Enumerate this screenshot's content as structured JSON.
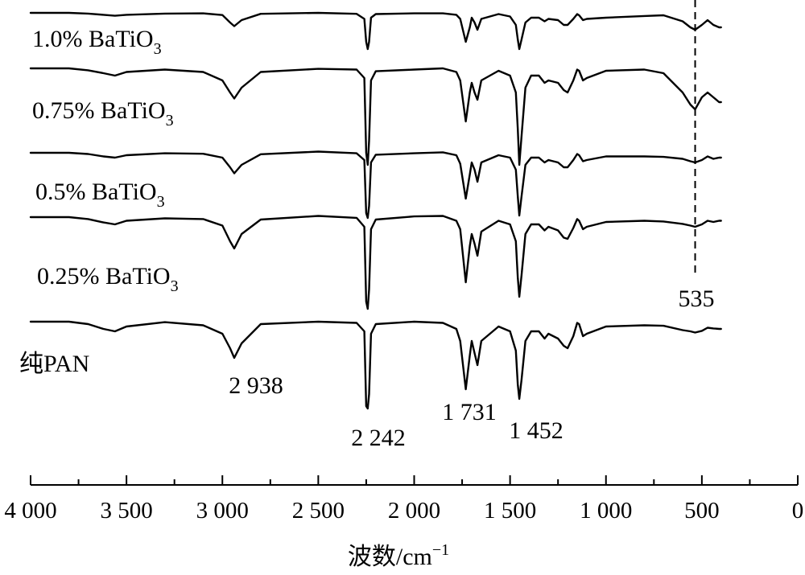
{
  "chart_data": {
    "type": "line",
    "title": "",
    "xlabel": "波数/cm",
    "xlabel_sup": "−1",
    "ylabel": "",
    "xlim": [
      4000,
      0
    ],
    "x_ticks": [
      4000,
      3500,
      3000,
      2500,
      2000,
      1500,
      1000,
      500,
      0
    ],
    "x_tick_labels": [
      "4 000",
      "3 500",
      "3 000",
      "2 500",
      "2 000",
      "1 500",
      "1 000",
      "500",
      "0"
    ],
    "grid": false,
    "legend": "none",
    "series": [
      {
        "name": "1.0% BaTiO₃",
        "label": {
          "base": "1.0% BaTiO",
          "sub": "3"
        },
        "x": [
          4000,
          3800,
          3700,
          3620,
          3560,
          3500,
          3300,
          3100,
          3000,
          2960,
          2938,
          2900,
          2800,
          2500,
          2300,
          2260,
          2250,
          2242,
          2235,
          2225,
          2200,
          2000,
          1850,
          1780,
          1760,
          1731,
          1710,
          1700,
          1685,
          1670,
          1650,
          1560,
          1500,
          1470,
          1460,
          1452,
          1440,
          1420,
          1390,
          1350,
          1320,
          1300,
          1250,
          1220,
          1200,
          1170,
          1150,
          1140,
          1120,
          1100,
          1000,
          800,
          700,
          600,
          560,
          535,
          500,
          470,
          440,
          410,
          400
        ],
        "y": [
          0.0,
          0.0,
          -0.3,
          -0.8,
          -1.2,
          -0.8,
          -0.3,
          -0.2,
          -0.9,
          -4.0,
          -5.5,
          -3.0,
          -0.4,
          0.0,
          -0.4,
          -2.5,
          -12.0,
          -15.0,
          -12.0,
          -2.0,
          -0.5,
          -0.2,
          -0.2,
          -0.8,
          -2.5,
          -12.0,
          -6.0,
          -2.0,
          -4.0,
          -7.0,
          -2.5,
          -0.5,
          -1.5,
          -5.0,
          -11.0,
          -15.0,
          -11.0,
          -4.0,
          -2.0,
          -2.0,
          -3.5,
          -2.5,
          -3.0,
          -5.0,
          -5.0,
          -2.5,
          -0.5,
          -1.0,
          -3.0,
          -2.5,
          -2.0,
          -1.3,
          -1.0,
          -3.5,
          -6.0,
          -7.0,
          -5.0,
          -3.0,
          -5.0,
          -6.0,
          -6.0
        ]
      },
      {
        "name": "0.75% BaTiO₃",
        "label": {
          "base": "0.75% BaTiO",
          "sub": "3"
        },
        "x": [
          4000,
          3800,
          3700,
          3620,
          3560,
          3500,
          3300,
          3100,
          3000,
          2960,
          2938,
          2900,
          2800,
          2500,
          2300,
          2260,
          2250,
          2242,
          2235,
          2225,
          2200,
          2000,
          1850,
          1780,
          1760,
          1731,
          1710,
          1700,
          1685,
          1670,
          1650,
          1560,
          1500,
          1470,
          1460,
          1452,
          1440,
          1420,
          1390,
          1350,
          1320,
          1300,
          1250,
          1220,
          1200,
          1170,
          1150,
          1140,
          1120,
          1100,
          1000,
          800,
          700,
          600,
          560,
          535,
          500,
          470,
          440,
          410,
          400
        ],
        "y": [
          0.0,
          0.0,
          -0.8,
          -2.0,
          -3.0,
          -1.5,
          -0.5,
          -1.5,
          -5.0,
          -10.0,
          -12.5,
          -8.0,
          -1.5,
          -0.2,
          -0.5,
          -4.0,
          -35.0,
          -40.0,
          -30.0,
          -5.0,
          -1.2,
          -0.5,
          0.0,
          -1.5,
          -5.0,
          -22.0,
          -10.0,
          -6.0,
          -10.0,
          -13.0,
          -5.0,
          -1.0,
          -3.0,
          -10.0,
          -25.0,
          -40.0,
          -28.0,
          -8.0,
          -3.0,
          -3.0,
          -6.0,
          -5.0,
          -6.0,
          -9.0,
          -10.0,
          -5.0,
          -0.5,
          -1.0,
          -5.0,
          -4.0,
          -1.0,
          -0.5,
          -2.0,
          -10.0,
          -15.0,
          -17.0,
          -12.0,
          -10.0,
          -12.0,
          -14.0,
          -14.0
        ]
      },
      {
        "name": "0.5% BaTiO₃",
        "label": {
          "base": "0.5% BaTiO",
          "sub": "3"
        },
        "x": [
          4000,
          3800,
          3700,
          3620,
          3560,
          3500,
          3300,
          3100,
          3000,
          2960,
          2938,
          2900,
          2800,
          2500,
          2300,
          2260,
          2250,
          2242,
          2235,
          2225,
          2200,
          2000,
          1850,
          1780,
          1760,
          1731,
          1710,
          1700,
          1685,
          1670,
          1650,
          1560,
          1500,
          1470,
          1460,
          1452,
          1440,
          1420,
          1390,
          1350,
          1320,
          1300,
          1250,
          1220,
          1200,
          1170,
          1150,
          1140,
          1120,
          1100,
          1000,
          800,
          700,
          600,
          560,
          535,
          500,
          470,
          440,
          410,
          400
        ],
        "y": [
          0.0,
          0.0,
          -0.5,
          -1.5,
          -2.0,
          -1.0,
          -0.2,
          -0.4,
          -2.0,
          -6.0,
          -8.5,
          -5.0,
          -0.6,
          0.5,
          -0.2,
          -3.0,
          -25.0,
          -27.0,
          -22.0,
          -4.0,
          -0.8,
          -0.2,
          0.2,
          -1.0,
          -4.5,
          -19.0,
          -9.0,
          -4.0,
          -7.0,
          -12.0,
          -4.0,
          -1.0,
          -2.0,
          -7.0,
          -18.0,
          -26.0,
          -18.0,
          -5.0,
          -2.0,
          -2.0,
          -4.0,
          -3.0,
          -4.0,
          -6.0,
          -6.0,
          -3.0,
          -0.5,
          -1.0,
          -3.5,
          -3.0,
          -1.5,
          -1.5,
          -1.7,
          -2.5,
          -3.5,
          -4.0,
          -3.0,
          -1.5,
          -2.5,
          -2.0,
          -2.0
        ]
      },
      {
        "name": "0.25% BaTiO₃",
        "label": {
          "base": "0.25% BaTiO",
          "sub": "3"
        },
        "x": [
          4000,
          3800,
          3700,
          3620,
          3560,
          3500,
          3300,
          3100,
          3000,
          2960,
          2938,
          2900,
          2800,
          2500,
          2300,
          2260,
          2250,
          2242,
          2235,
          2225,
          2200,
          2000,
          1850,
          1780,
          1760,
          1731,
          1710,
          1700,
          1685,
          1670,
          1650,
          1560,
          1500,
          1470,
          1460,
          1452,
          1440,
          1420,
          1390,
          1350,
          1320,
          1300,
          1250,
          1220,
          1200,
          1170,
          1150,
          1140,
          1120,
          1100,
          1000,
          800,
          700,
          600,
          560,
          535,
          500,
          470,
          440,
          410,
          400
        ],
        "y": [
          0.0,
          0.0,
          -0.8,
          -2.2,
          -3.0,
          -1.5,
          -0.5,
          -0.8,
          -3.5,
          -10.0,
          -13.0,
          -7.0,
          -1.0,
          0.5,
          -0.3,
          -4.0,
          -35.0,
          -38.0,
          -30.0,
          -5.0,
          -1.0,
          0.3,
          0.5,
          -1.5,
          -5.0,
          -27.0,
          -12.0,
          -7.0,
          -11.0,
          -16.0,
          -6.0,
          -1.5,
          -3.0,
          -10.0,
          -25.0,
          -33.0,
          -24.0,
          -7.0,
          -3.0,
          -3.0,
          -5.5,
          -4.0,
          -5.5,
          -8.5,
          -9.0,
          -4.5,
          -0.8,
          -1.5,
          -5.0,
          -4.0,
          -2.0,
          -1.5,
          -1.8,
          -2.8,
          -3.5,
          -4.0,
          -3.0,
          -1.5,
          -2.0,
          -1.5,
          -1.5
        ]
      },
      {
        "name": "纯PAN",
        "label": {
          "base": "纯PAN",
          "sub": ""
        },
        "x": [
          4000,
          3800,
          3700,
          3620,
          3560,
          3500,
          3300,
          3100,
          3000,
          2960,
          2938,
          2900,
          2800,
          2500,
          2300,
          2260,
          2250,
          2242,
          2235,
          2225,
          2200,
          2000,
          1850,
          1780,
          1760,
          1731,
          1710,
          1700,
          1685,
          1670,
          1650,
          1560,
          1500,
          1470,
          1460,
          1452,
          1440,
          1420,
          1390,
          1350,
          1320,
          1300,
          1250,
          1220,
          1200,
          1170,
          1150,
          1140,
          1120,
          1100,
          1000,
          800,
          700,
          600,
          560,
          535,
          500,
          470,
          440,
          410,
          400
        ],
        "y": [
          0.0,
          0.0,
          -1.0,
          -3.0,
          -4.0,
          -2.0,
          -0.2,
          -1.5,
          -5.0,
          -11.0,
          -15.0,
          -9.0,
          -1.0,
          0.0,
          -0.5,
          -4.0,
          -35.0,
          -36.0,
          -30.0,
          -5.0,
          -1.0,
          0.0,
          -0.5,
          -3.0,
          -8.0,
          -28.0,
          -14.0,
          -8.0,
          -13.0,
          -18.0,
          -8.0,
          -2.0,
          -4.0,
          -12.0,
          -26.0,
          -32.0,
          -24.0,
          -8.0,
          -4.0,
          -4.0,
          -7.0,
          -5.0,
          -7.0,
          -10.0,
          -11.0,
          -6.0,
          -0.5,
          -1.0,
          -6.0,
          -5.0,
          -2.0,
          -1.5,
          -1.7,
          -3.5,
          -4.0,
          -4.5,
          -3.8,
          -2.5,
          -2.8,
          -3.0,
          -3.0
        ]
      }
    ],
    "annotations": [
      {
        "text": "2 938",
        "x": 2938
      },
      {
        "text": "2 242",
        "x": 2242
      },
      {
        "text": "1 731",
        "x": 1731
      },
      {
        "text": "1 452",
        "x": 1452
      },
      {
        "text": "535",
        "x": 535
      }
    ],
    "reference_line": {
      "x": 535,
      "style": "dashed"
    }
  }
}
